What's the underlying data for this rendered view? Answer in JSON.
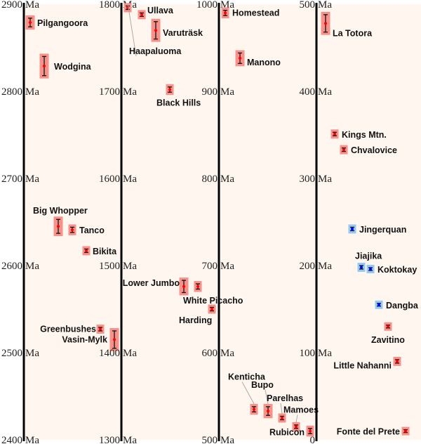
{
  "chart_data": {
    "type": "scatter",
    "title": "",
    "unit_label": "Ma",
    "panels": [
      {
        "range": [
          2900,
          2400
        ],
        "ticks": [
          "2900",
          "2800",
          "2700",
          "2600",
          "2500",
          "2400"
        ],
        "deposits": [
          {
            "name": "Pilgangoora",
            "age": 2879,
            "err": 5,
            "color": "red"
          },
          {
            "name": "Wodgina",
            "age": 2829,
            "err": 11,
            "color": "red"
          },
          {
            "name": "Big Whopper",
            "age": 2645,
            "err": 8,
            "color": "red"
          },
          {
            "name": "Tanco",
            "age": 2641,
            "err": 3,
            "color": "red"
          },
          {
            "name": "Bikita",
            "age": 2617,
            "err": 2,
            "color": "red"
          },
          {
            "name": "Greenbushes",
            "age": 2527,
            "err": 2,
            "color": "red"
          },
          {
            "name": "Vasin-Mylk",
            "age": 2515,
            "err": 10,
            "color": "red"
          }
        ]
      },
      {
        "range": [
          1800,
          1300
        ],
        "ticks": [
          "1800",
          "1700",
          "1600",
          "1500",
          "1400",
          "1300"
        ],
        "deposits": [
          {
            "name": "Haapaluoma",
            "age": 1796,
            "err": 2,
            "color": "red"
          },
          {
            "name": "Ullava",
            "age": 1788,
            "err": 2,
            "color": "red"
          },
          {
            "name": "Varuträsk",
            "age": 1770,
            "err": 10,
            "color": "red"
          },
          {
            "name": "Black Hills",
            "age": 1702,
            "err": 3,
            "color": "red"
          },
          {
            "name": "Lower Jumbo",
            "age": 1476,
            "err": 7,
            "color": "red"
          },
          {
            "name": "White Picacho",
            "age": 1476,
            "err": 3,
            "color": "red"
          },
          {
            "name": "Harding",
            "age": 1450,
            "err": 2,
            "color": "red"
          }
        ]
      },
      {
        "range": [
          1000,
          500
        ],
        "ticks": [
          "1000",
          "900",
          "800",
          "700",
          "600",
          "500"
        ],
        "deposits": [
          {
            "name": "Homestead",
            "age": 990,
            "err": 3,
            "color": "red"
          },
          {
            "name": "Manono",
            "age": 938,
            "err": 6,
            "color": "red"
          },
          {
            "name": "Kenticha",
            "age": 535,
            "err": 3,
            "color": "red"
          },
          {
            "name": "Bupo",
            "age": 533,
            "err": 5,
            "color": "red"
          },
          {
            "name": "Parelhas",
            "age": 525,
            "err": 2,
            "color": "red"
          },
          {
            "name": "Mamoes",
            "age": 515,
            "err": 2,
            "color": "red"
          },
          {
            "name": "Rubicon",
            "age": 510,
            "err": 3,
            "color": "red"
          }
        ]
      },
      {
        "range": [
          500,
          0
        ],
        "ticks": [
          "500",
          "400",
          "300",
          "200",
          "100",
          "0"
        ],
        "deposits": [
          {
            "name": "La Totora",
            "age": 478,
            "err": 10,
            "color": "red"
          },
          {
            "name": "Kings Mtn.",
            "age": 351,
            "err": 2,
            "color": "red"
          },
          {
            "name": "Chvalovice",
            "age": 333,
            "err": 2,
            "color": "red"
          },
          {
            "name": "Jingerquan",
            "age": 242,
            "err": 2,
            "color": "blue"
          },
          {
            "name": "Jiajika",
            "age": 198,
            "err": 2,
            "color": "blue"
          },
          {
            "name": "Koktokay",
            "age": 196,
            "err": 1,
            "color": "blue"
          },
          {
            "name": "Dangba",
            "age": 155,
            "err": 1,
            "color": "blue"
          },
          {
            "name": "Zavitino",
            "age": 130,
            "err": 1,
            "color": "red"
          },
          {
            "name": "Little Nahanni",
            "age": 90,
            "err": 2,
            "color": "red"
          },
          {
            "name": "Fonte del Prete",
            "age": 10,
            "err": 1,
            "color": "red"
          }
        ]
      }
    ],
    "colors": {
      "red_box": "#f7918a",
      "red_point": "#ff0000",
      "blue_box": "#93c9f3",
      "blue_point": "#0000ff",
      "background": "#fff7ef",
      "axis": "#000000"
    }
  }
}
